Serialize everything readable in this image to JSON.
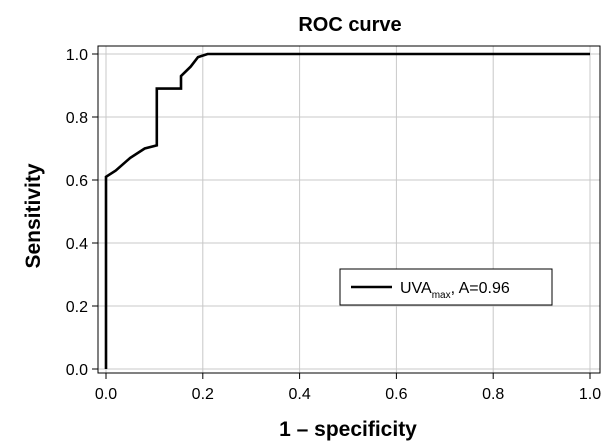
{
  "chart_data": {
    "type": "line",
    "title": "ROC curve",
    "xlabel": "1 – specificity",
    "ylabel": "Sensitivity",
    "xlim": [
      0,
      1
    ],
    "ylim": [
      0,
      1
    ],
    "xticks": [
      "0.0",
      "0.2",
      "0.4",
      "0.6",
      "0.8",
      "1.0"
    ],
    "yticks": [
      "0.0",
      "0.2",
      "0.4",
      "0.6",
      "0.8",
      "1.0"
    ],
    "grid": true,
    "legend_position": "bottom-right",
    "series": [
      {
        "name_main": "UVA",
        "name_sub": "max",
        "name_suffix": ", A=0.96",
        "color": "#000000",
        "x": [
          0,
          0,
          0.02,
          0.05,
          0.08,
          0.105,
          0.105,
          0.155,
          0.155,
          0.175,
          0.19,
          0.21,
          0.21,
          0.6,
          1.0
        ],
        "y": [
          0,
          0.61,
          0.63,
          0.67,
          0.7,
          0.71,
          0.89,
          0.89,
          0.93,
          0.96,
          0.99,
          1.0,
          1.0,
          1.0,
          1.0
        ]
      }
    ]
  }
}
